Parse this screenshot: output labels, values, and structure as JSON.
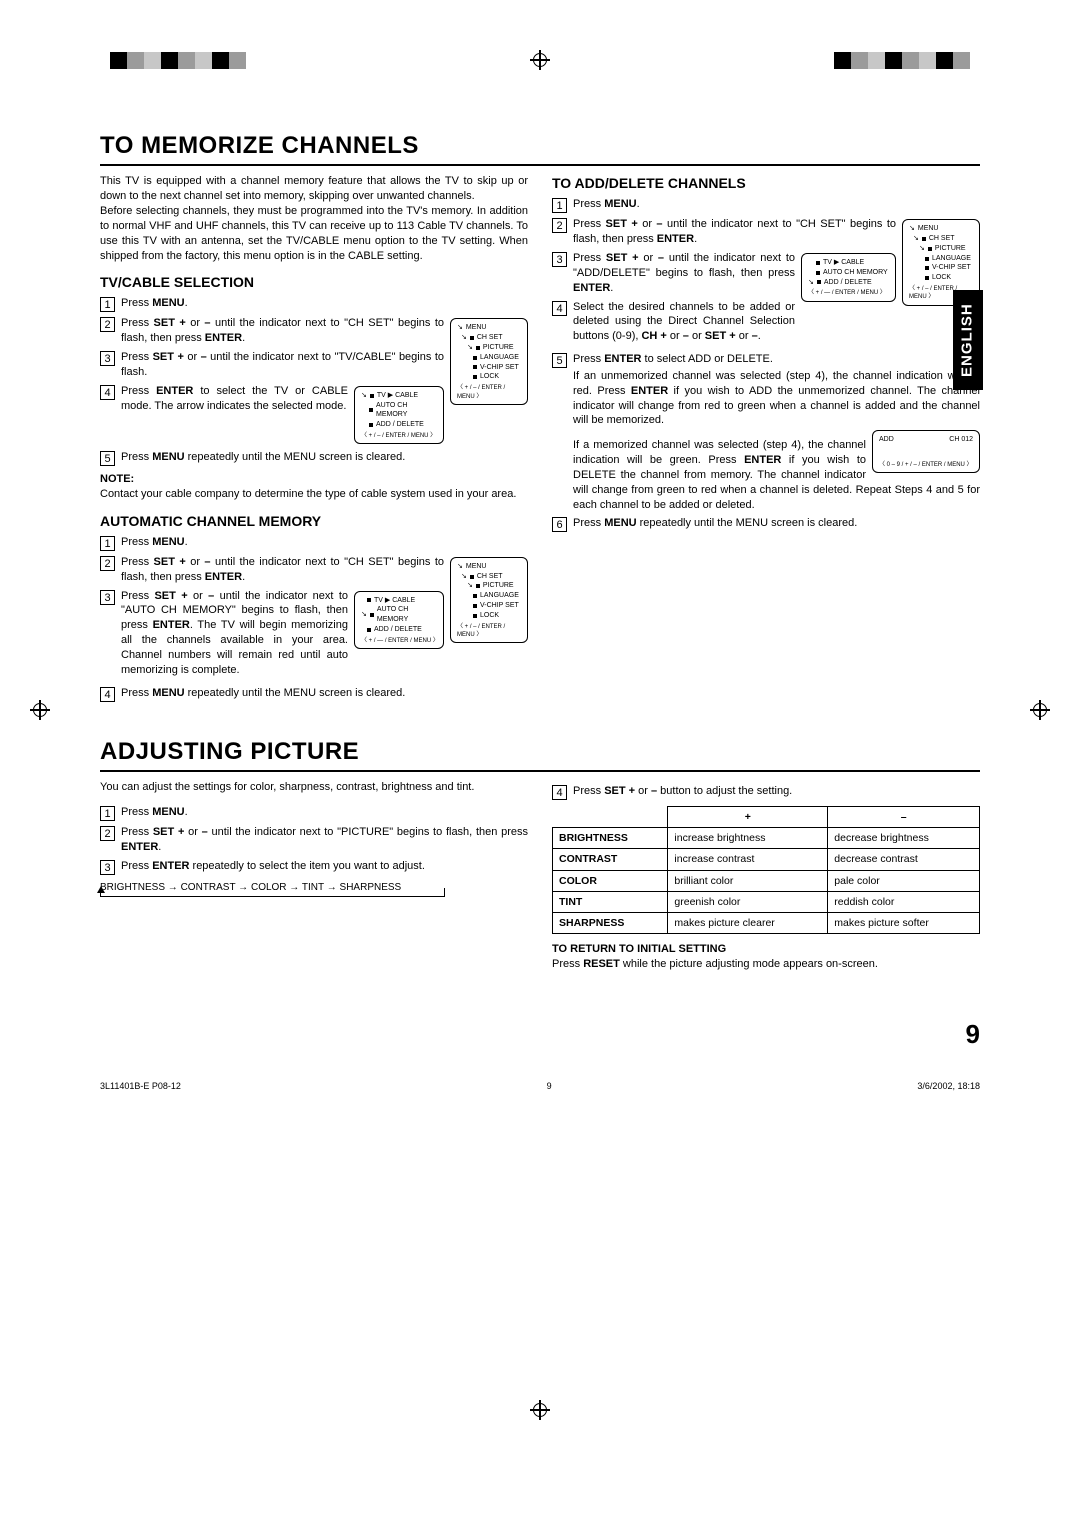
{
  "page_number": "9",
  "footer_left": "3L11401B-E P08-12",
  "footer_mid": "9",
  "footer_right": "3/6/2002, 18:18",
  "language_tab": "ENGLISH",
  "section1": {
    "title": "TO MEMORIZE CHANNELS",
    "intro1": "This TV is equipped with a channel memory feature that allows the TV to skip up or down to the next channel set into memory, skipping over unwanted channels.",
    "intro2": "Before selecting channels, they must be programmed into the TV's memory. In addition to normal VHF and UHF channels, this TV can receive up to 113 Cable TV channels. To use this TV with an antenna, set the TV/CABLE menu option to the TV setting. When shipped from the factory, this menu option is in the CABLE setting.",
    "tvcable": {
      "heading": "TV/CABLE SELECTION",
      "s1": "Press ",
      "s1b": "MENU",
      "s1c": ".",
      "s2a": "Press ",
      "s2b": "SET +",
      "s2c": " or ",
      "s2d": "–",
      "s2e": " until the indicator next to \"CH SET\" begins to flash, then press ",
      "s2f": "ENTER",
      "s2g": ".",
      "s3a": "Press ",
      "s3b": "SET +",
      "s3c": " or ",
      "s3d": "–",
      "s3e": " until the indicator next to \"TV/CABLE\" begins to flash.",
      "s4a": "Press ",
      "s4b": "ENTER",
      "s4c": " to select the TV or CABLE mode. The arrow indicates the selected mode.",
      "s5a": "Press ",
      "s5b": "MENU",
      "s5c": " repeatedly until the MENU screen is cleared.",
      "note_label": "NOTE:",
      "note": "Contact your cable company to determine the type of cable system used in your area."
    },
    "auto": {
      "heading": "AUTOMATIC CHANNEL MEMORY",
      "s1": "Press ",
      "s1b": "MENU",
      "s1c": ".",
      "s2a": "Press ",
      "s2b": "SET +",
      "s2c": " or ",
      "s2d": "–",
      "s2e": " until the indicator next to \"CH SET\" begins to flash, then press ",
      "s2f": "ENTER",
      "s2g": ".",
      "s3a": "Press ",
      "s3b": "SET +",
      "s3c": " or ",
      "s3d": "–",
      "s3e": " until the indicator next to \"AUTO CH MEMORY\" begins to flash, then press ",
      "s3f": "ENTER",
      "s3g": ". The TV will begin memorizing all the channels available in your area. Channel numbers will remain red until auto memorizing is complete.",
      "s4a": "Press ",
      "s4b": "MENU",
      "s4c": " repeatedly until the MENU screen is cleared."
    },
    "add": {
      "heading": "TO ADD/DELETE CHANNELS",
      "s1": "Press ",
      "s1b": "MENU",
      "s1c": ".",
      "s2a": "Press ",
      "s2b": "SET +",
      "s2c": " or ",
      "s2d": "–",
      "s2e": " until the indicator next to \"CH SET\" begins to flash, then press ",
      "s2f": "ENTER",
      "s2g": ".",
      "s3a": "Press ",
      "s3b": "SET +",
      "s3c": " or ",
      "s3d": "–",
      "s3e": " until the indicator next to \"ADD/DELETE\" begins to flash, then press ",
      "s3f": "ENTER",
      "s3g": ".",
      "s4a": "Select the desired channels to be added or deleted using the Direct Channel Selection buttons (0-9), ",
      "s4b": "CH +",
      "s4c": " or ",
      "s4d": "–",
      "s4e": " or ",
      "s4f": "SET +",
      "s4g": " or ",
      "s4h": "–",
      "s4i": ".",
      "s5a": "Press ",
      "s5b": "ENTER",
      "s5c": " to select ADD or DELETE.",
      "s5p1a": "If an unmemorized channel was selected (step 4), the channel indication will be red. Press ",
      "s5p1b": "ENTER",
      "s5p1c": " if you wish to ADD the unmemorized channel. The channel indicator will change from red to green when a channel is added and the channel will be memorized.",
      "s5p2a": "If a memorized channel was selected (step 4), the channel indication will be green. Press ",
      "s5p2b": "ENTER",
      "s5p2c": " if you wish to DELETE the channel from memory. The channel indicator will change from green to red when a channel is deleted. Repeat Steps 4 and 5 for each channel to be added or deleted.",
      "s6a": "Press ",
      "s6b": "MENU",
      "s6c": " repeatedly until the MENU screen is cleared."
    }
  },
  "menus": {
    "main": {
      "title": "MENU",
      "rows": [
        "CH SET",
        "PICTURE",
        "LANGUAGE",
        "V-CHIP SET",
        "LOCK"
      ],
      "foot": "〈 + / – / ENTER / MENU 〉"
    },
    "chset1": {
      "rows": [
        "TV ▶ CABLE",
        "AUTO CH MEMORY",
        "ADD / DELETE"
      ],
      "foot": "〈 + / – / ENTER / MENU 〉"
    },
    "chset2": {
      "rows": [
        "TV ▶ CABLE",
        "AUTO CH MEMORY",
        "ADD / DELETE"
      ],
      "foot": "〈 + / — / ENTER / MENU 〉"
    },
    "adddel": {
      "top": "ADD",
      "right": "CH 012",
      "foot": "〈 0 – 9 / + / – / ENTER / MENU 〉"
    }
  },
  "section2": {
    "title": "ADJUSTING PICTURE",
    "intro": "You can adjust the settings for color, sharpness, contrast, brightness and tint.",
    "s1": "Press ",
    "s1b": "MENU",
    "s1c": ".",
    "s2a": "Press ",
    "s2b": "SET +",
    "s2c": " or ",
    "s2d": "–",
    "s2e": " until the indicator next to \"PICTURE\" begins to flash, then press ",
    "s2f": "ENTER",
    "s2g": ".",
    "s3a": "Press ",
    "s3b": "ENTER",
    "s3c": " repeatedly to select the item you want to adjust.",
    "flow": [
      "BRIGHTNESS",
      "CONTRAST",
      "COLOR",
      "TINT",
      "SHARPNESS"
    ],
    "s4a": "Press ",
    "s4b": "SET +",
    "s4c": " or ",
    "s4d": "–",
    "s4e": " button to adjust the setting.",
    "table": {
      "cols": [
        "",
        "+",
        "–"
      ],
      "rows": [
        [
          "BRIGHTNESS",
          "increase brightness",
          "decrease brightness"
        ],
        [
          "CONTRAST",
          "increase contrast",
          "decrease contrast"
        ],
        [
          "COLOR",
          "brilliant color",
          "pale color"
        ],
        [
          "TINT",
          "greenish color",
          "reddish color"
        ],
        [
          "SHARPNESS",
          "makes picture clearer",
          "makes picture softer"
        ]
      ]
    },
    "return_h": "TO RETURN TO INITIAL SETTING",
    "return_a": "Press ",
    "return_b": "RESET",
    "return_c": " while the picture adjusting mode appears on-screen."
  },
  "colors": {
    "sq_seq": [
      "#000000",
      "#9b9b9b",
      "#c7c7c7",
      "#000000",
      "#9b9b9b",
      "#c7c7c7",
      "#000000",
      "#9b9b9b"
    ]
  }
}
